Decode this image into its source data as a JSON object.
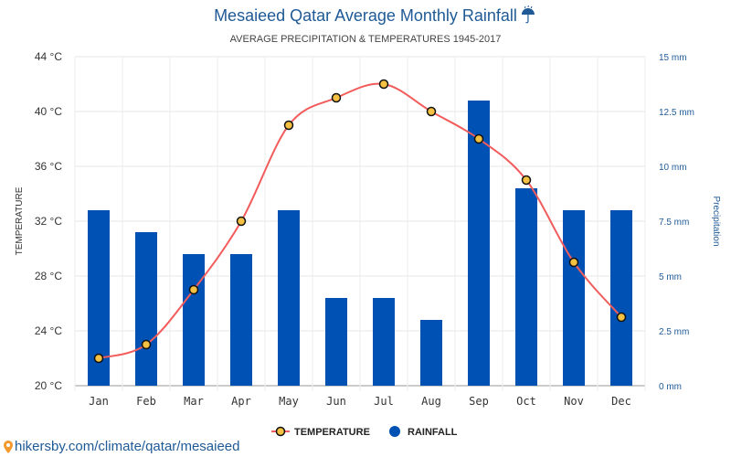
{
  "chart_data": {
    "type": "bar",
    "title": "Mesaieed Qatar Average Monthly Rainfall",
    "title_icon": "umbrella-rain-icon",
    "subtitle": "AVERAGE PRECIPITATION & TEMPERATURES 1945-2017",
    "categories": [
      "Jan",
      "Feb",
      "Mar",
      "Apr",
      "May",
      "Jun",
      "Jul",
      "Aug",
      "Sep",
      "Oct",
      "Nov",
      "Dec"
    ],
    "series": [
      {
        "name": "TEMPERATURE",
        "type": "line",
        "axis": "left",
        "unit": "°C",
        "values": [
          22,
          23,
          27,
          32,
          39,
          41,
          42,
          40,
          38,
          35,
          29,
          25
        ],
        "color": "#f25c5c",
        "marker_fill": "#f5c142"
      },
      {
        "name": "RAINFALL",
        "type": "bar",
        "axis": "right",
        "unit": "mm",
        "values": [
          8,
          7,
          6,
          6,
          8,
          4,
          4,
          3,
          13,
          9,
          8,
          8
        ],
        "color": "#0051b4"
      }
    ],
    "ylabel_left": "TEMPERATURE",
    "ylabel_right": "Precipitation",
    "ylim_left": [
      20,
      44
    ],
    "ylim_right": [
      0,
      15
    ],
    "left_ticks": [
      "20 °C",
      "24 °C",
      "28 °C",
      "32 °C",
      "36 °C",
      "40 °C",
      "44 °C"
    ],
    "right_ticks": [
      "0 mm",
      "2.5 mm",
      "5 mm",
      "7.5 mm",
      "10 mm",
      "12.5 mm",
      "15 mm"
    ],
    "grid": true,
    "legend_position": "bottom"
  },
  "source": {
    "text": "hikersby.com/climate/qatar/mesaieed",
    "icon": "map-pin-icon"
  }
}
